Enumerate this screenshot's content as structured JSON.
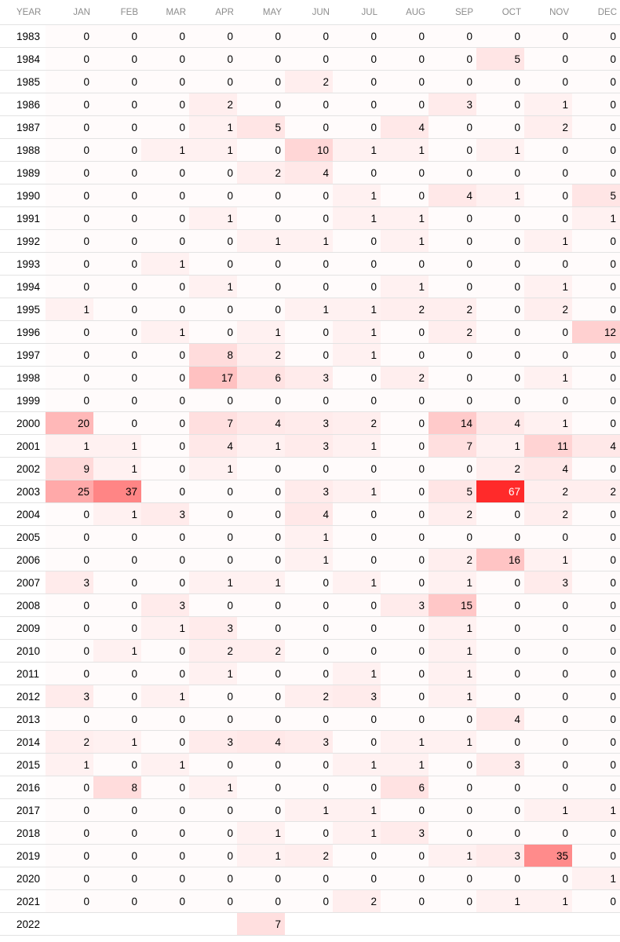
{
  "table": {
    "headers": [
      "YEAR",
      "JAN",
      "FEB",
      "MAR",
      "APR",
      "MAY",
      "JUN",
      "JUL",
      "AUG",
      "SEP",
      "OCT",
      "NOV",
      "DEC"
    ],
    "max_value": 67,
    "heat_color": "#ff2a2a",
    "rows": [
      {
        "year": "1983",
        "values": [
          0,
          0,
          0,
          0,
          0,
          0,
          0,
          0,
          0,
          0,
          0,
          0
        ]
      },
      {
        "year": "1984",
        "values": [
          0,
          0,
          0,
          0,
          0,
          0,
          0,
          0,
          0,
          5,
          0,
          0
        ]
      },
      {
        "year": "1985",
        "values": [
          0,
          0,
          0,
          0,
          0,
          2,
          0,
          0,
          0,
          0,
          0,
          0
        ]
      },
      {
        "year": "1986",
        "values": [
          0,
          0,
          0,
          2,
          0,
          0,
          0,
          0,
          3,
          0,
          1,
          0
        ]
      },
      {
        "year": "1987",
        "values": [
          0,
          0,
          0,
          1,
          5,
          0,
          0,
          4,
          0,
          0,
          2,
          0
        ]
      },
      {
        "year": "1988",
        "values": [
          0,
          0,
          1,
          1,
          0,
          10,
          1,
          1,
          0,
          1,
          0,
          0
        ]
      },
      {
        "year": "1989",
        "values": [
          0,
          0,
          0,
          0,
          2,
          4,
          0,
          0,
          0,
          0,
          0,
          0
        ]
      },
      {
        "year": "1990",
        "values": [
          0,
          0,
          0,
          0,
          0,
          0,
          1,
          0,
          4,
          1,
          0,
          5
        ]
      },
      {
        "year": "1991",
        "values": [
          0,
          0,
          0,
          1,
          0,
          0,
          1,
          1,
          0,
          0,
          0,
          1
        ]
      },
      {
        "year": "1992",
        "values": [
          0,
          0,
          0,
          0,
          1,
          1,
          0,
          1,
          0,
          0,
          1,
          0
        ]
      },
      {
        "year": "1993",
        "values": [
          0,
          0,
          1,
          0,
          0,
          0,
          0,
          0,
          0,
          0,
          0,
          0
        ]
      },
      {
        "year": "1994",
        "values": [
          0,
          0,
          0,
          1,
          0,
          0,
          0,
          1,
          0,
          0,
          1,
          0
        ]
      },
      {
        "year": "1995",
        "values": [
          1,
          0,
          0,
          0,
          0,
          1,
          1,
          2,
          2,
          0,
          2,
          0
        ]
      },
      {
        "year": "1996",
        "values": [
          0,
          0,
          1,
          0,
          1,
          0,
          1,
          0,
          2,
          0,
          0,
          12
        ]
      },
      {
        "year": "1997",
        "values": [
          0,
          0,
          0,
          8,
          2,
          0,
          1,
          0,
          0,
          0,
          0,
          0
        ]
      },
      {
        "year": "1998",
        "values": [
          0,
          0,
          0,
          17,
          6,
          3,
          0,
          2,
          0,
          0,
          1,
          0
        ]
      },
      {
        "year": "1999",
        "values": [
          0,
          0,
          0,
          0,
          0,
          0,
          0,
          0,
          0,
          0,
          0,
          0
        ]
      },
      {
        "year": "2000",
        "values": [
          20,
          0,
          0,
          7,
          4,
          3,
          2,
          0,
          14,
          4,
          1,
          0
        ]
      },
      {
        "year": "2001",
        "values": [
          1,
          1,
          0,
          4,
          1,
          3,
          1,
          0,
          7,
          1,
          11,
          4
        ]
      },
      {
        "year": "2002",
        "values": [
          9,
          1,
          0,
          1,
          0,
          0,
          0,
          0,
          0,
          2,
          4,
          0
        ]
      },
      {
        "year": "2003",
        "values": [
          25,
          37,
          0,
          0,
          0,
          3,
          1,
          0,
          5,
          67,
          2,
          2
        ]
      },
      {
        "year": "2004",
        "values": [
          0,
          1,
          3,
          0,
          0,
          4,
          0,
          0,
          2,
          0,
          2,
          0
        ]
      },
      {
        "year": "2005",
        "values": [
          0,
          0,
          0,
          0,
          0,
          1,
          0,
          0,
          0,
          0,
          0,
          0
        ]
      },
      {
        "year": "2006",
        "values": [
          0,
          0,
          0,
          0,
          0,
          1,
          0,
          0,
          2,
          16,
          1,
          0
        ]
      },
      {
        "year": "2007",
        "values": [
          3,
          0,
          0,
          1,
          1,
          0,
          1,
          0,
          1,
          0,
          3,
          0
        ]
      },
      {
        "year": "2008",
        "values": [
          0,
          0,
          3,
          0,
          0,
          0,
          0,
          3,
          15,
          0,
          0,
          0
        ]
      },
      {
        "year": "2009",
        "values": [
          0,
          0,
          1,
          3,
          0,
          0,
          0,
          0,
          1,
          0,
          0,
          0
        ]
      },
      {
        "year": "2010",
        "values": [
          0,
          1,
          0,
          2,
          2,
          0,
          0,
          0,
          1,
          0,
          0,
          0
        ]
      },
      {
        "year": "2011",
        "values": [
          0,
          0,
          0,
          1,
          0,
          0,
          1,
          0,
          1,
          0,
          0,
          0
        ]
      },
      {
        "year": "2012",
        "values": [
          3,
          0,
          1,
          0,
          0,
          2,
          3,
          0,
          1,
          0,
          0,
          0
        ]
      },
      {
        "year": "2013",
        "values": [
          0,
          0,
          0,
          0,
          0,
          0,
          0,
          0,
          0,
          4,
          0,
          0
        ]
      },
      {
        "year": "2014",
        "values": [
          2,
          1,
          0,
          3,
          4,
          3,
          0,
          1,
          1,
          0,
          0,
          0
        ]
      },
      {
        "year": "2015",
        "values": [
          1,
          0,
          1,
          0,
          0,
          0,
          1,
          1,
          0,
          3,
          0,
          0
        ]
      },
      {
        "year": "2016",
        "values": [
          0,
          8,
          0,
          1,
          0,
          0,
          0,
          6,
          0,
          0,
          0,
          0
        ]
      },
      {
        "year": "2017",
        "values": [
          0,
          0,
          0,
          0,
          0,
          1,
          1,
          0,
          0,
          0,
          1,
          1
        ]
      },
      {
        "year": "2018",
        "values": [
          0,
          0,
          0,
          0,
          1,
          0,
          1,
          3,
          0,
          0,
          0,
          0
        ]
      },
      {
        "year": "2019",
        "values": [
          0,
          0,
          0,
          0,
          1,
          2,
          0,
          0,
          1,
          3,
          35,
          0
        ]
      },
      {
        "year": "2020",
        "values": [
          0,
          0,
          0,
          0,
          0,
          0,
          0,
          0,
          0,
          0,
          0,
          1
        ]
      },
      {
        "year": "2021",
        "values": [
          0,
          0,
          0,
          0,
          0,
          0,
          2,
          0,
          0,
          1,
          1,
          0
        ]
      },
      {
        "year": "2022",
        "values": [
          null,
          null,
          null,
          null,
          7,
          null,
          null,
          null,
          null,
          null,
          null,
          null
        ]
      }
    ]
  }
}
